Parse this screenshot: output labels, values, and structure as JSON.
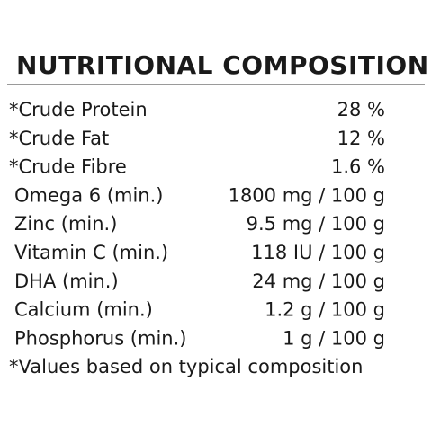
{
  "title": "NUTRITIONAL COMPOSITION",
  "table": {
    "rows": [
      [
        "*Crude Protein",
        "28 %"
      ],
      [
        "*Crude Fat",
        "12 %"
      ],
      [
        "*Crude Fibre",
        "1.6 %"
      ],
      [
        "Omega 6 (min.)",
        "1800 mg / 100 g"
      ],
      [
        "Zinc (min.)",
        "9.5 mg / 100 g"
      ],
      [
        "Vitamin C (min.)",
        "118 IU / 100 g"
      ],
      [
        "DHA (min.)",
        "24 mg / 100 g"
      ],
      [
        "Calcium (min.)",
        "1.2 g / 100 g"
      ],
      [
        "Phosphorus (min.)",
        "1 g / 100 g"
      ]
    ]
  },
  "footnote": "*Values based on typical composition"
}
